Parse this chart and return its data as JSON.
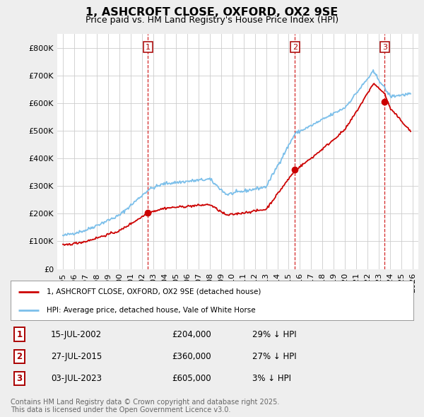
{
  "title": "1, ASHCROFT CLOSE, OXFORD, OX2 9SE",
  "subtitle": "Price paid vs. HM Land Registry's House Price Index (HPI)",
  "title_fontsize": 11.5,
  "subtitle_fontsize": 9,
  "background_color": "#eeeeee",
  "plot_background_color": "#ffffff",
  "ylim": [
    0,
    850000
  ],
  "yticks": [
    0,
    100000,
    200000,
    300000,
    400000,
    500000,
    600000,
    700000,
    800000
  ],
  "xlim_start": 1994.5,
  "xlim_end": 2026.5,
  "hpi_color": "#7bbfea",
  "price_color": "#cc0000",
  "dashed_line_color": "#cc0000",
  "grid_color": "#cccccc",
  "sales": [
    {
      "num": 1,
      "date_decimal": 2002.54,
      "price": 204000,
      "label": "15-JUL-2002",
      "pct": "29% ↓ HPI"
    },
    {
      "num": 2,
      "date_decimal": 2015.56,
      "price": 360000,
      "label": "27-JUL-2015",
      "pct": "27% ↓ HPI"
    },
    {
      "num": 3,
      "date_decimal": 2023.5,
      "price": 605000,
      "label": "03-JUL-2023",
      "pct": "3% ↓ HPI"
    }
  ],
  "legend_entries": [
    "1, ASHCROFT CLOSE, OXFORD, OX2 9SE (detached house)",
    "HPI: Average price, detached house, Vale of White Horse"
  ],
  "footer": "Contains HM Land Registry data © Crown copyright and database right 2025.\nThis data is licensed under the Open Government Licence v3.0.",
  "footer_fontsize": 7,
  "xtick_years": [
    1995,
    1996,
    1997,
    1998,
    1999,
    2000,
    2001,
    2002,
    2003,
    2004,
    2005,
    2006,
    2007,
    2008,
    2009,
    2010,
    2011,
    2012,
    2013,
    2014,
    2015,
    2016,
    2017,
    2018,
    2019,
    2020,
    2021,
    2022,
    2023,
    2024,
    2025,
    2026
  ]
}
